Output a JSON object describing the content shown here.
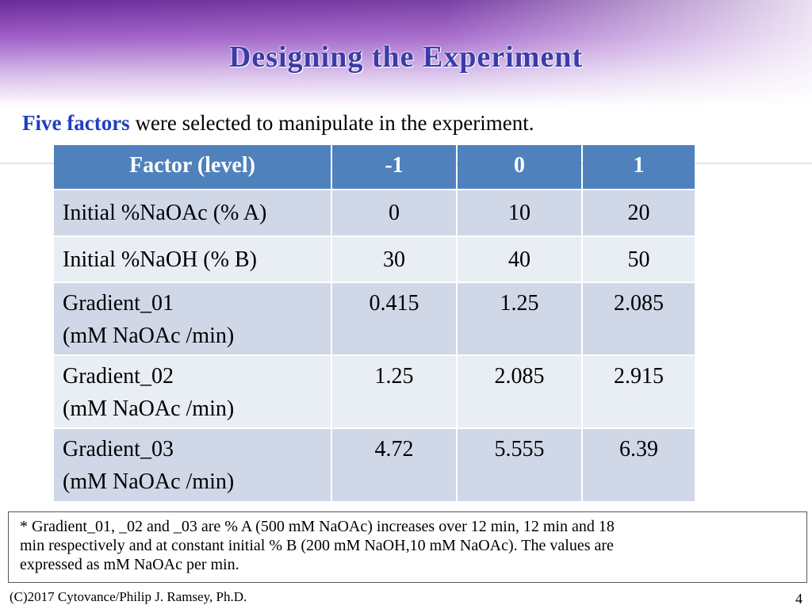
{
  "header": {
    "title": "Designing the Experiment"
  },
  "intro": {
    "highlight": "Five factors",
    "text": "were selected to manipulate in the experiment."
  },
  "table": {
    "header": [
      "Factor (level)",
      "-1",
      "0",
      "1"
    ],
    "rows": [
      {
        "label": [
          "Initial %NaOAc  (% A)"
        ],
        "cells": [
          "0",
          "10",
          "20"
        ]
      },
      {
        "label": [
          "Initial %NaOH  (% B)"
        ],
        "cells": [
          "30",
          "40",
          "50"
        ]
      },
      {
        "label": [
          "Gradient_01",
          "(mM NaOAc /min)"
        ],
        "cells": [
          "0.415",
          "1.25",
          "2.085"
        ]
      },
      {
        "label": [
          "Gradient_02",
          "(mM NaOAc /min)"
        ],
        "cells": [
          "1.25",
          "2.085",
          "2.915"
        ]
      },
      {
        "label": [
          "Gradient_03",
          "(mM NaOAc /min)"
        ],
        "cells": [
          "4.72",
          "5.555",
          "6.39"
        ]
      }
    ]
  },
  "footnote": [
    "* Gradient_01, _02 and _03 are % A (500 mM NaOAc) increases over 12 min, 12 min and 18",
    "min respectively and at constant initial % B (200 mM NaOH,10 mM NaOAc). The values are",
    "expressed as mM NaOAc per min."
  ],
  "footer": {
    "credit": "(C)2017 Cytovance/Philip J. Ramsey, Ph.D.",
    "page": "4"
  }
}
